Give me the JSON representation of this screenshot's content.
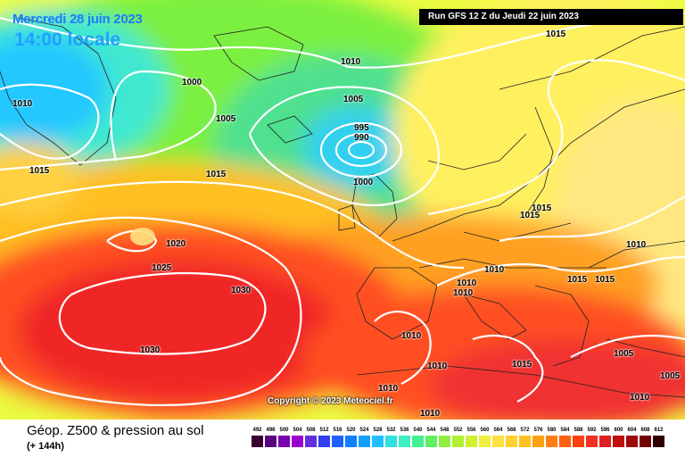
{
  "map": {
    "valid_date": "Mercredi 28 juin 2023",
    "valid_time": "14:00 locale",
    "run_info": "Run GFS 12 Z du Jeudi 22 juin 2023",
    "copyright": "Copyright © 2023 Meteociel.fr",
    "isobar_labels": [
      "1010",
      "1015",
      "1010",
      "1000",
      "1005",
      "1005",
      "995",
      "990",
      "1015",
      "1015",
      "1000",
      "1020",
      "1025",
      "1030",
      "1030",
      "1015",
      "1010",
      "1010",
      "1010",
      "1015",
      "1015",
      "1015",
      "1010",
      "1010",
      "1015",
      "1010",
      "1010",
      "1005",
      "1010",
      "1005",
      "1010"
    ]
  },
  "footer": {
    "title": "Géop. Z500 & pression au sol",
    "step": "(+ 144h)"
  },
  "legend": {
    "values": [
      "492",
      "496",
      "500",
      "504",
      "508",
      "512",
      "516",
      "520",
      "524",
      "528",
      "532",
      "536",
      "540",
      "544",
      "548",
      "552",
      "556",
      "560",
      "564",
      "568",
      "572",
      "576",
      "580",
      "584",
      "588",
      "592",
      "596",
      "600",
      "604",
      "608",
      "612"
    ],
    "colors": [
      "#3a0030",
      "#5a0080",
      "#7a00b0",
      "#9a00d0",
      "#6030e0",
      "#3040f0",
      "#2060ff",
      "#1080ff",
      "#10a0ff",
      "#20c0ff",
      "#30e0e0",
      "#40f0c0",
      "#40f090",
      "#60f060",
      "#90f040",
      "#b0f030",
      "#d0f030",
      "#f0f040",
      "#ffe040",
      "#ffd030",
      "#ffc020",
      "#ffa010",
      "#ff8010",
      "#ff6010",
      "#ff4010",
      "#f03020",
      "#e02020",
      "#c01010",
      "#a00808",
      "#700404",
      "#300000"
    ]
  }
}
